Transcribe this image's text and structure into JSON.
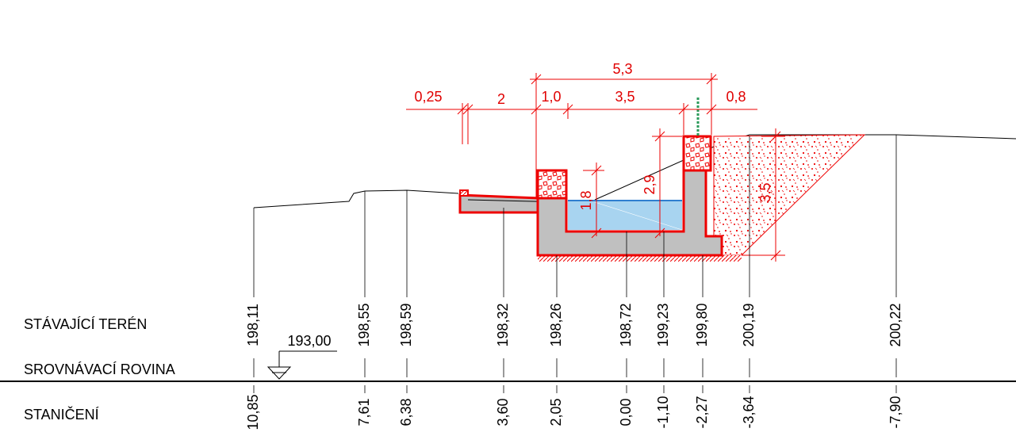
{
  "rows": {
    "terrain": "STÁVAJÍCÍ TERÉN",
    "datum": "SROVNÁVACÍ ROVINA",
    "station": "STANIČENÍ"
  },
  "datum_level": "193,00",
  "columns": [
    {
      "terrain": "198,11",
      "station": "10,85"
    },
    {
      "terrain": "198,55",
      "station": "7,61"
    },
    {
      "terrain": "198,59",
      "station": "6,38"
    },
    {
      "terrain": "198,32",
      "station": "3,60"
    },
    {
      "terrain": "198,26",
      "station": "2,05"
    },
    {
      "terrain": "198,72",
      "station": "0,00"
    },
    {
      "terrain": "199,23",
      "station": "-1,10"
    },
    {
      "terrain": "199,80",
      "station": "-2,27"
    },
    {
      "terrain": "200,19",
      "station": "-3,64"
    },
    {
      "terrain": "200,22",
      "station": "-7,90"
    }
  ],
  "dimensions": [
    "5,3",
    "0,25",
    "2",
    "1,0",
    "3,5",
    "0,8",
    "1,8",
    "2,9",
    "3,5"
  ]
}
